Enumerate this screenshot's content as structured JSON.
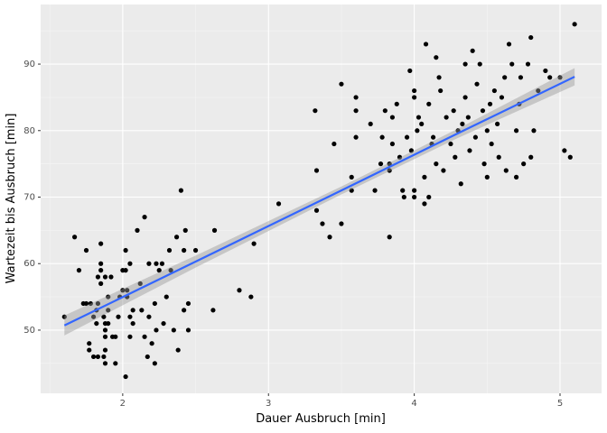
{
  "chart_data": {
    "type": "scatter",
    "xlabel": "Dauer Ausbruch [min]",
    "ylabel": "Wartezeit bis Ausbruch [min]",
    "x": [
      1.6,
      1.67,
      1.7,
      1.73,
      1.75,
      1.75,
      1.77,
      1.77,
      1.78,
      1.8,
      1.8,
      1.82,
      1.82,
      1.83,
      1.83,
      1.83,
      1.85,
      1.85,
      1.85,
      1.85,
      1.87,
      1.87,
      1.88,
      1.88,
      1.88,
      1.88,
      1.88,
      1.88,
      1.9,
      1.9,
      1.9,
      1.92,
      1.93,
      1.95,
      1.95,
      1.97,
      1.98,
      2.0,
      2.0,
      2.02,
      2.02,
      2.02,
      2.03,
      2.03,
      2.05,
      2.05,
      2.05,
      2.07,
      2.07,
      2.1,
      2.12,
      2.13,
      2.15,
      2.15,
      2.17,
      2.18,
      2.18,
      2.2,
      2.22,
      2.22,
      2.23,
      2.23,
      2.25,
      2.27,
      2.28,
      2.3,
      2.32,
      2.33,
      2.35,
      2.37,
      2.38,
      2.4,
      2.42,
      2.42,
      2.43,
      2.45,
      2.45,
      2.5,
      2.62,
      2.63,
      2.8,
      2.88,
      2.9,
      3.07,
      3.32,
      3.33,
      3.33,
      3.37,
      3.42,
      3.45,
      3.5,
      3.5,
      3.57,
      3.57,
      3.6,
      3.6,
      3.6,
      3.7,
      3.73,
      3.77,
      3.78,
      3.8,
      3.83,
      3.83,
      3.83,
      3.85,
      3.85,
      3.88,
      3.9,
      3.92,
      3.93,
      3.95,
      3.97,
      3.98,
      4.0,
      4.0,
      4.0,
      4.0,
      4.02,
      4.03,
      4.05,
      4.07,
      4.07,
      4.08,
      4.1,
      4.1,
      4.12,
      4.13,
      4.15,
      4.15,
      4.17,
      4.18,
      4.2,
      4.22,
      4.25,
      4.27,
      4.28,
      4.3,
      4.32,
      4.33,
      4.35,
      4.35,
      4.37,
      4.38,
      4.4,
      4.42,
      4.43,
      4.45,
      4.47,
      4.48,
      4.5,
      4.5,
      4.52,
      4.53,
      4.55,
      4.57,
      4.58,
      4.6,
      4.62,
      4.63,
      4.65,
      4.67,
      4.7,
      4.7,
      4.72,
      4.73,
      4.75,
      4.78,
      4.8,
      4.8,
      4.82,
      4.85,
      4.9,
      4.93,
      5.0,
      5.03,
      5.07,
      5.1
    ],
    "values": [
      52,
      64,
      59,
      54,
      54,
      62,
      48,
      47,
      54,
      52,
      46,
      51,
      53,
      58,
      54,
      46,
      59,
      63,
      57,
      60,
      46,
      52,
      45,
      47,
      49,
      50,
      51,
      58,
      55,
      53,
      51,
      58,
      49,
      45,
      49,
      52,
      55,
      56,
      59,
      59,
      62,
      43,
      55,
      56,
      49,
      52,
      60,
      53,
      51,
      65,
      57,
      53,
      49,
      67,
      46,
      60,
      52,
      48,
      54,
      45,
      50,
      60,
      59,
      60,
      51,
      55,
      62,
      59,
      50,
      64,
      47,
      71,
      62,
      53,
      65,
      54,
      50,
      62,
      53,
      65,
      56,
      55,
      63,
      69,
      83,
      74,
      68,
      66,
      64,
      78,
      87,
      66,
      73,
      71,
      85,
      83,
      79,
      81,
      71,
      75,
      79,
      83,
      64,
      74,
      75,
      82,
      78,
      84,
      76,
      71,
      70,
      79,
      89,
      77,
      85,
      86,
      71,
      70,
      80,
      82,
      81,
      73,
      69,
      93,
      84,
      70,
      78,
      79,
      91,
      75,
      88,
      86,
      74,
      82,
      78,
      83,
      76,
      80,
      72,
      81,
      90,
      85,
      82,
      77,
      92,
      79,
      87,
      90,
      83,
      75,
      80,
      73,
      84,
      78,
      86,
      81,
      76,
      85,
      88,
      74,
      93,
      90,
      80,
      73,
      84,
      88,
      75,
      90,
      94,
      76,
      80,
      86,
      89,
      88,
      88,
      77,
      76,
      96
    ],
    "color": "#000000",
    "smooth": {
      "x": [
        1.6,
        2.5,
        3.5,
        4.3,
        5.1
      ],
      "values": [
        50.7,
        60.3,
        71.0,
        79.6,
        88.1
      ],
      "lower": [
        49.2,
        59.4,
        70.4,
        78.9,
        86.8
      ],
      "upper": [
        52.2,
        61.2,
        71.6,
        80.3,
        89.4
      ],
      "color": "#3366FF",
      "band_color": "#999999"
    },
    "xlim": [
      1.437,
      5.285
    ],
    "ylim": [
      40.5,
      98.96
    ],
    "xticks": [
      2,
      3,
      4,
      5
    ],
    "yticks": [
      50,
      60,
      70,
      80,
      90
    ],
    "grid": true
  }
}
